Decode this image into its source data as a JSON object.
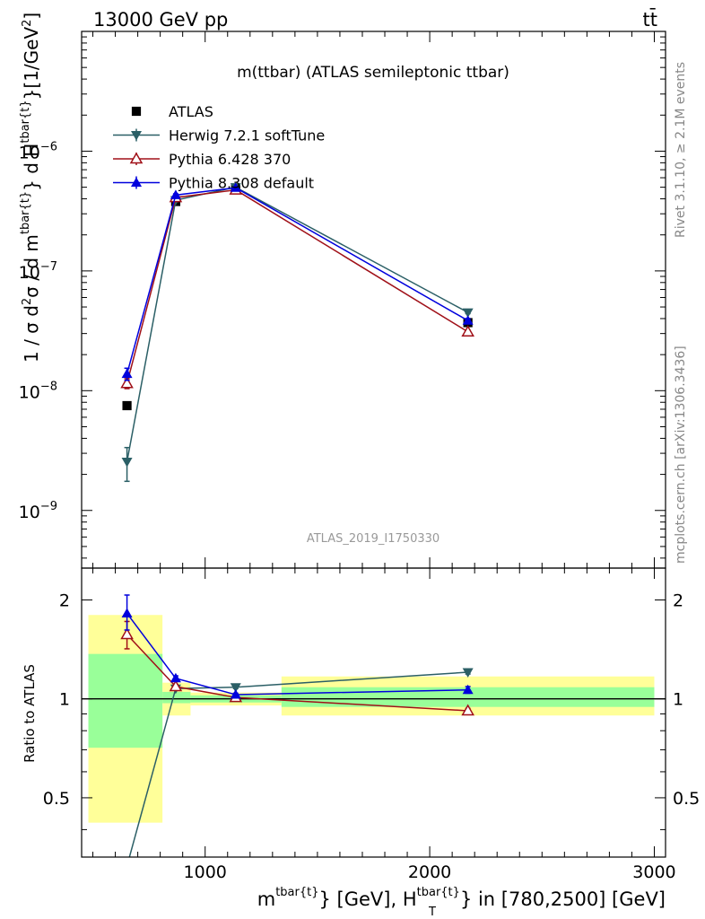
{
  "header": {
    "energy": "13000 GeV pp",
    "process": "tt̄"
  },
  "side": {
    "version": "Rivet 3.1.10, ≥ 2.1M events",
    "source": "mcplots.cern.ch [arXiv:1306.3436]"
  },
  "chart_data": [
    {
      "type": "line",
      "title": "m(ttbar) (ATLAS semileptonic ttbar)",
      "watermark": "ATLAS_2019_I1750330",
      "xlabel": "m^{tbar{t}} [GeV], H_T^{tbar{t}} in [780,2500] [GeV]",
      "ylabel": "1 / σ d²σ / d m^{tbar{t}} d H_T^{tbar{t}} [1/GeV²]",
      "xlim": [
        450,
        3050
      ],
      "ylim": [
        3.3e-10,
        1e-05
      ],
      "yscale": "log",
      "y_ticks": [
        {
          "value": 1e-09,
          "mantissa": "10",
          "exponent": "−9"
        },
        {
          "value": 1e-08,
          "mantissa": "10",
          "exponent": "−8"
        },
        {
          "value": 1e-07,
          "mantissa": "10",
          "exponent": "−7"
        },
        {
          "value": 1e-06,
          "mantissa": "10",
          "exponent": "−6"
        }
      ],
      "legend_position": "top-left",
      "x": [
        652,
        869,
        1136,
        2170
      ],
      "series": [
        {
          "name": "ATLAS",
          "color": "#000000",
          "marker": "square",
          "values": [
            7.5e-09,
            3.8e-07,
            4.9e-07,
            3.7e-08
          ]
        },
        {
          "name": "Herwig 7.2.1 softTune",
          "color": "#2b5f66",
          "marker": "triangle-down",
          "values": [
            2.55e-09,
            3.9e-07,
            5e-07,
            4.5e-08
          ],
          "err_low": [
            1.75e-09,
            3.8e-07,
            4.9e-07,
            4.4e-08
          ],
          "err_high": [
            3.35e-09,
            4e-07,
            5.1e-07,
            4.6e-08
          ]
        },
        {
          "name": "Pythia 6.428 370",
          "color": "#a01018",
          "marker": "triangle-open",
          "values": [
            1.15e-08,
            4.1e-07,
            4.75e-07,
            3.1e-08
          ],
          "err_low": [
            1.04e-08,
            4e-07,
            4.65e-07,
            3e-08
          ],
          "err_high": [
            1.26e-08,
            4.2e-07,
            4.85e-07,
            3.2e-08
          ]
        },
        {
          "name": "Pythia 8.308 default",
          "color": "#0000dd",
          "marker": "triangle-up",
          "values": [
            1.38e-08,
            4.3e-07,
            4.95e-07,
            3.85e-08
          ],
          "err_low": [
            1.22e-08,
            4.2e-07,
            4.85e-07,
            3.7e-08
          ],
          "err_high": [
            1.54e-08,
            4.4e-07,
            5.05e-07,
            4e-08
          ]
        }
      ]
    },
    {
      "type": "line",
      "ylabel": "Ratio to ATLAS",
      "xlim": [
        450,
        3050
      ],
      "ylim": [
        0.33,
        2.5
      ],
      "yscale": "log",
      "y_tick_labels": [
        "0.5",
        "1",
        "2"
      ],
      "y_tick_values": [
        0.5,
        1,
        2
      ],
      "x_tick_labels": [
        "1000",
        "2000",
        "3000"
      ],
      "x_tick_values": [
        1000,
        2000,
        3000
      ],
      "bands": [
        {
          "x_range": [
            480,
            810
          ],
          "yellow": [
            0.42,
            1.8
          ],
          "green": [
            0.71,
            1.37
          ]
        },
        {
          "x_range": [
            810,
            935
          ],
          "yellow": [
            0.89,
            1.12
          ],
          "green": [
            0.97,
            1.05
          ]
        },
        {
          "x_range": [
            935,
            1340
          ],
          "yellow": [
            0.955,
            1.045
          ],
          "green": [
            0.975,
            1.025
          ]
        },
        {
          "x_range": [
            1340,
            3000
          ],
          "yellow": [
            0.89,
            1.17
          ],
          "green": [
            0.945,
            1.085
          ]
        }
      ],
      "x": [
        652,
        869,
        1136,
        2170
      ],
      "series": [
        {
          "name": "Herwig 7.2.1 softTune",
          "color": "#2b5f66",
          "marker": "triangle-down",
          "values": [
            0.31,
            1.075,
            1.085,
            1.205
          ],
          "err_low": [
            0.31,
            1.065,
            1.075,
            1.19
          ],
          "err_high": [
            0.31,
            1.085,
            1.095,
            1.22
          ]
        },
        {
          "name": "Pythia 6.428 370",
          "color": "#a01018",
          "marker": "triangle-open",
          "values": [
            1.57,
            1.09,
            1.01,
            0.92
          ],
          "err_low": [
            1.42,
            1.075,
            1.0,
            0.905
          ],
          "err_high": [
            1.72,
            1.105,
            1.02,
            0.935
          ]
        },
        {
          "name": "Pythia 8.308 default",
          "color": "#0000dd",
          "marker": "triangle-up",
          "values": [
            1.82,
            1.155,
            1.03,
            1.065
          ],
          "err_low": [
            1.62,
            1.135,
            1.02,
            1.04
          ],
          "err_high": [
            2.07,
            1.175,
            1.04,
            1.09
          ]
        }
      ]
    }
  ]
}
